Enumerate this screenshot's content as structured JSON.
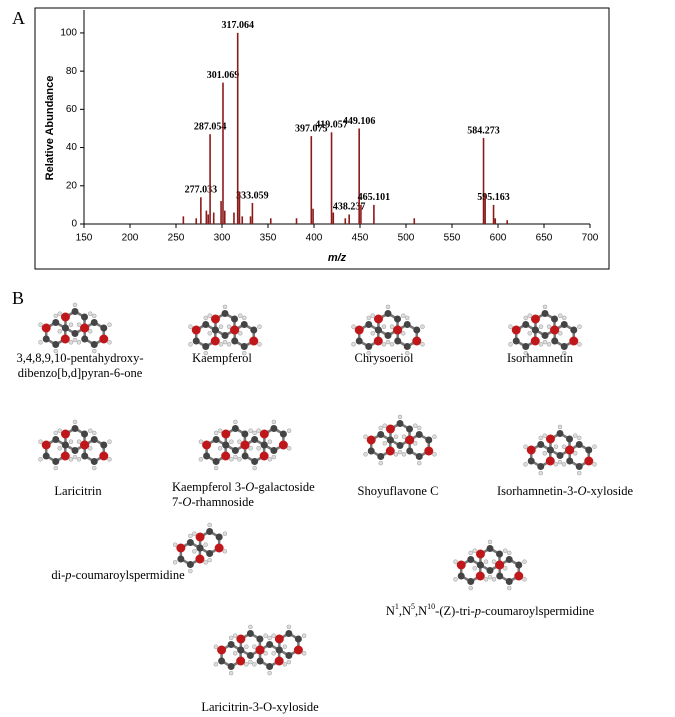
{
  "panel_labels": [
    "A",
    "B"
  ],
  "chart_data": {
    "type": "stem",
    "x_label": "m/z",
    "y_label": "Relative Abundance",
    "xlim": [
      150,
      700
    ],
    "xticks": [
      150,
      200,
      250,
      300,
      350,
      400,
      450,
      500,
      550,
      600,
      650,
      700
    ],
    "ylim": [
      0,
      112
    ],
    "yticks": [
      0,
      20,
      40,
      60,
      80,
      100
    ],
    "color": "#8b1a1a",
    "series": [
      {
        "data_labels": true,
        "x": [
          277.033,
          287.054,
          301.069,
          317.064,
          333.059,
          397.075,
          419.057,
          438.237,
          449.106,
          465.101,
          584.273,
          595.163
        ],
        "values": [
          14,
          47,
          74,
          100,
          11,
          46,
          48,
          5,
          50,
          10,
          45,
          10
        ]
      },
      {
        "data_labels": false,
        "x": [
          258,
          272,
          283,
          285,
          291,
          299,
          303,
          313,
          319,
          322,
          331,
          353,
          381,
          399,
          421,
          434,
          451,
          509,
          586,
          597,
          610
        ],
        "values": [
          4,
          3,
          7,
          5,
          6,
          12,
          7,
          6,
          17,
          4,
          4,
          3,
          3,
          8,
          6,
          3,
          10,
          3,
          16,
          3,
          2
        ]
      }
    ]
  },
  "molecules": [
    {
      "label": [
        [
          "3,4,8,9,10-pentahydroxy-"
        ],
        [
          "dibenzo[b,d]pyran-6-one"
        ]
      ]
    },
    {
      "label": [
        [
          "Kaempferol"
        ]
      ]
    },
    {
      "label": [
        [
          "Chrysoeriol"
        ]
      ]
    },
    {
      "label": [
        [
          "Isorhamnetin"
        ]
      ]
    },
    {
      "label": [
        [
          "Laricitrin"
        ]
      ]
    },
    {
      "label": [
        [
          "Kaempferol 3-",
          {
            "i": "O"
          },
          "-galactoside"
        ],
        [
          "7-",
          {
            "i": "O"
          },
          "-rhamnoside"
        ]
      ]
    },
    {
      "label": [
        [
          "Shoyuflavone C"
        ]
      ]
    },
    {
      "label": [
        [
          "Isorhamnetin-3-",
          {
            "i": "O"
          },
          "-xyloside"
        ]
      ]
    },
    {
      "label": [
        [
          "di-",
          {
            "i": "p"
          },
          "-coumaroylspermidine"
        ]
      ]
    },
    {
      "label": [
        [
          "N",
          {
            "sup": "1"
          },
          ",N",
          {
            "sup": "5"
          },
          ",N",
          {
            "sup": "10"
          },
          "-(Z)-tri-",
          {
            "i": "p"
          },
          "-coumaroylspermidine"
        ]
      ]
    },
    {
      "label": [
        [
          "Laricitrin-3-O-xyloside"
        ]
      ]
    }
  ]
}
